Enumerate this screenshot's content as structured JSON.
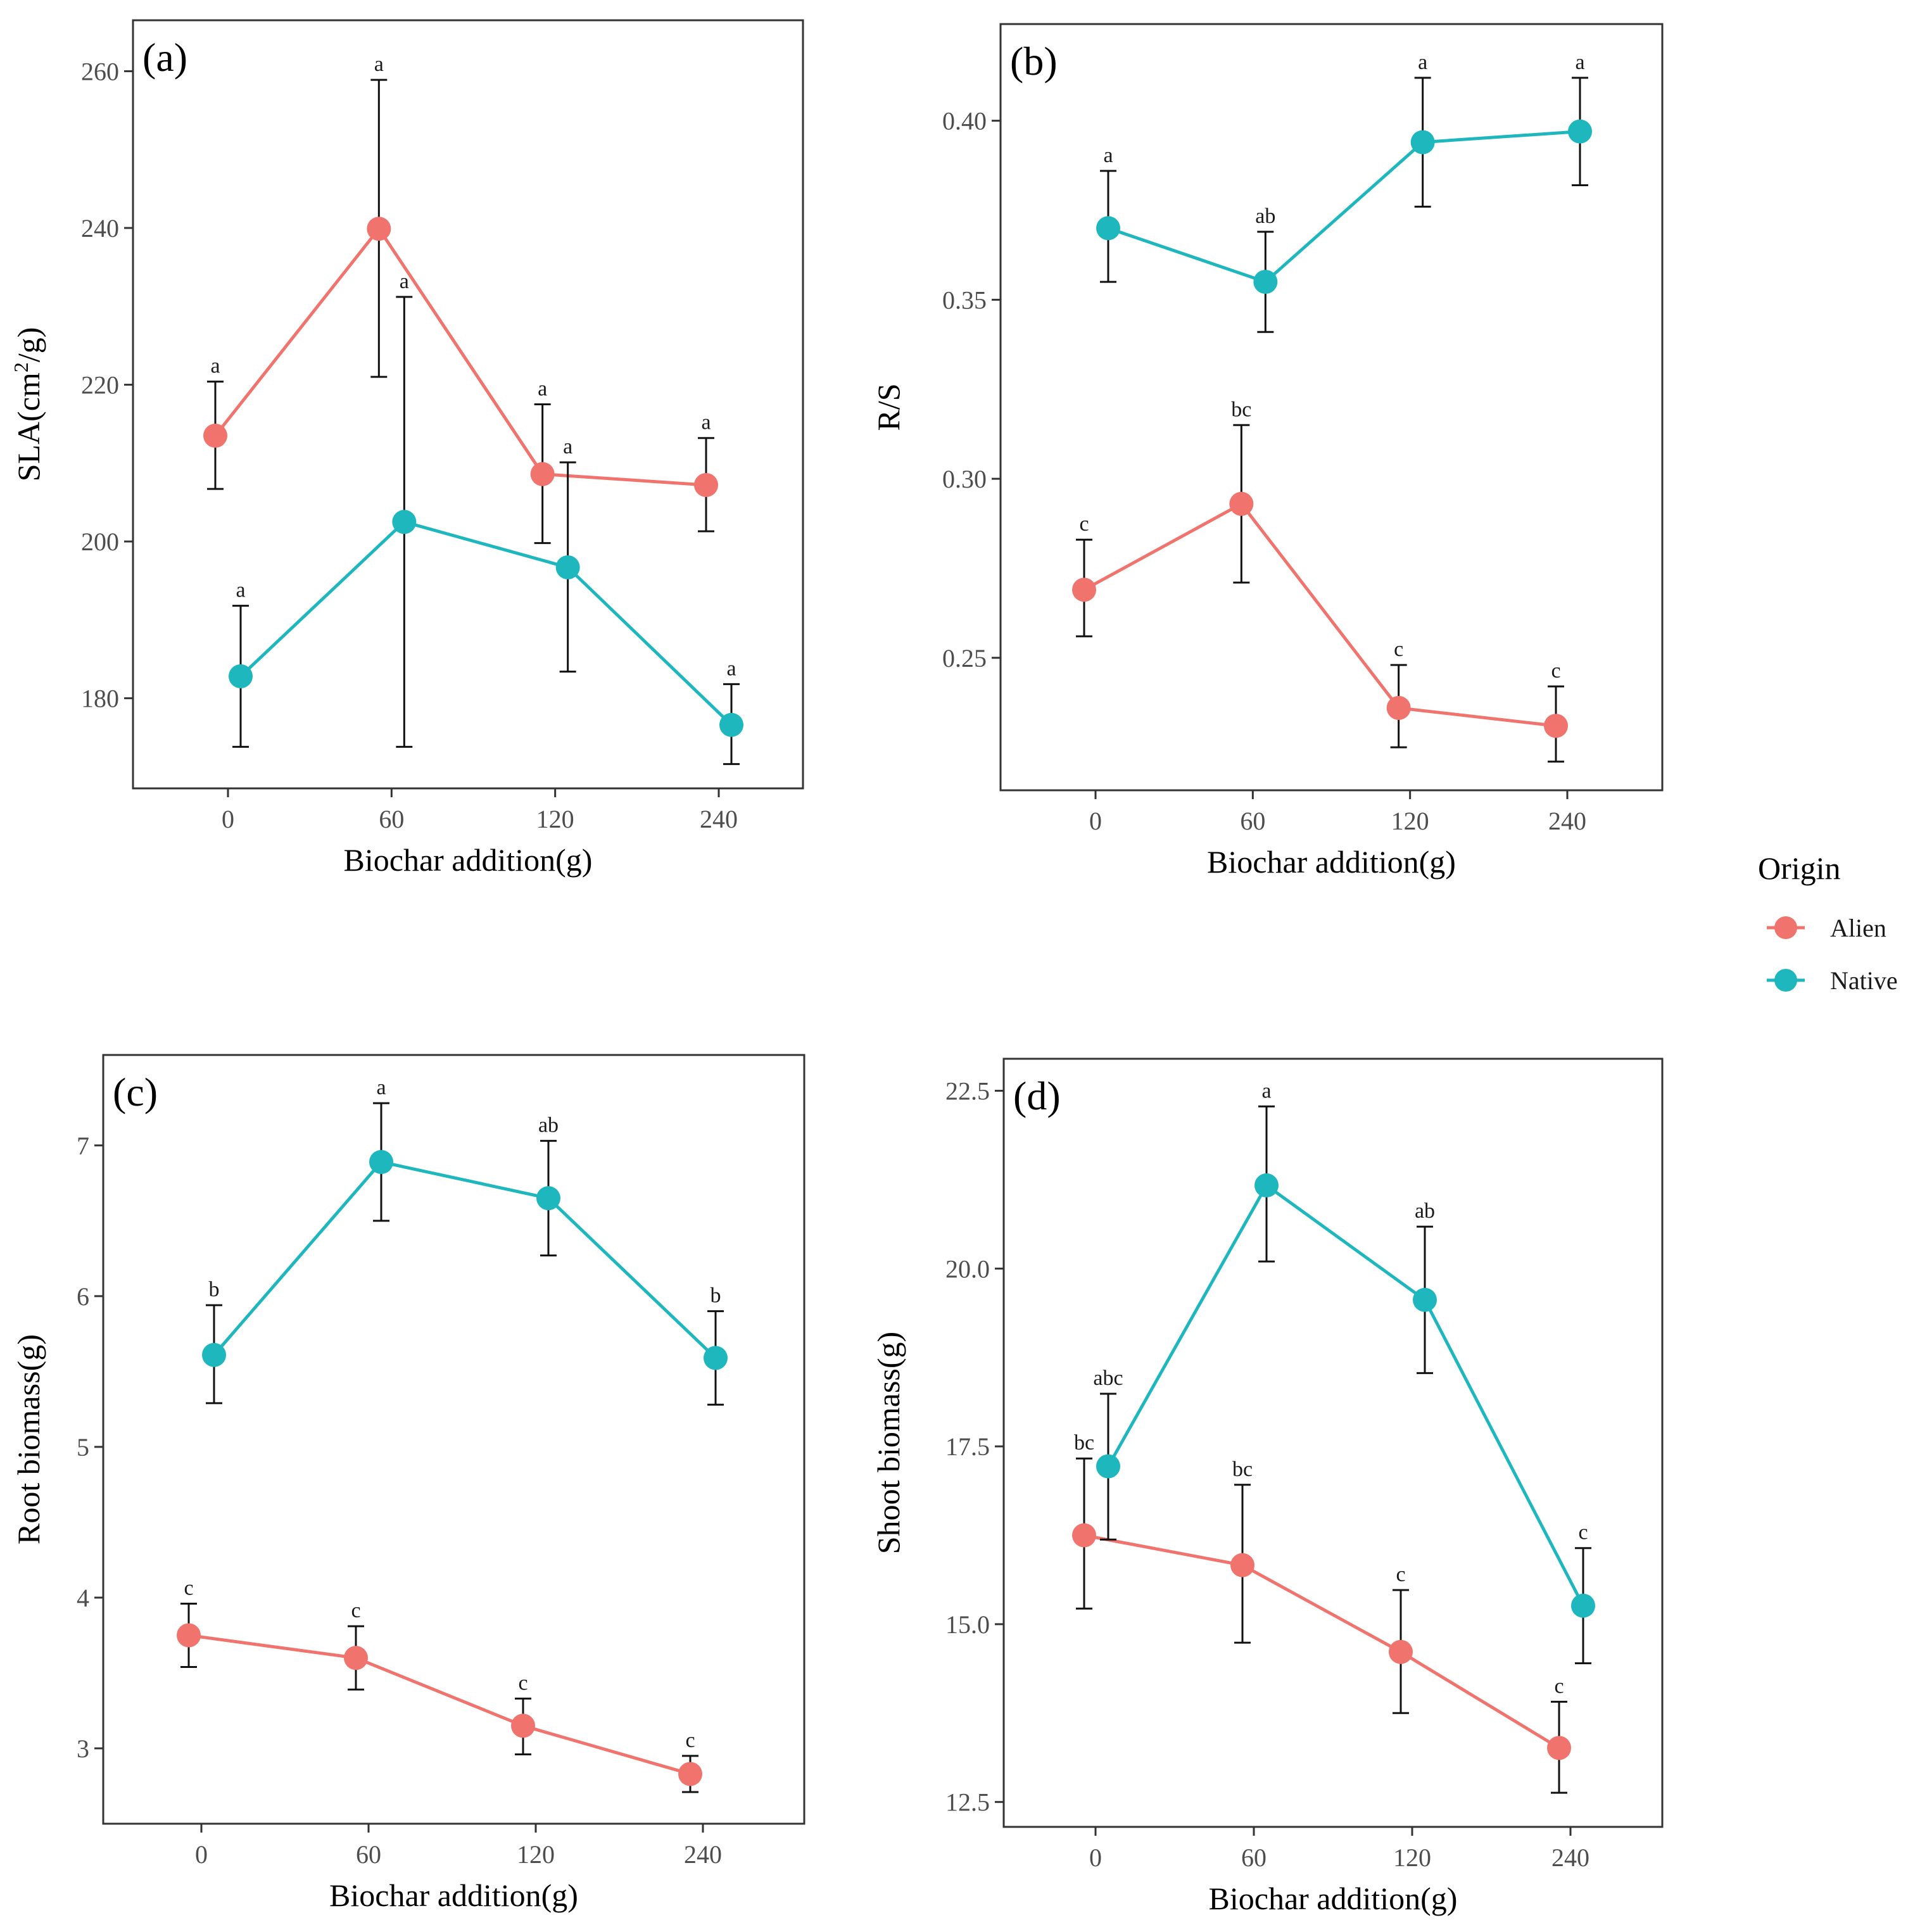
{
  "chart_data": [
    {
      "panel": "(a)",
      "type": "line",
      "xlabel": "Biochar addition(g)",
      "ylabel_main": "SLA(cm",
      "ylabel_sup": "2",
      "ylabel_tail": "/g)",
      "categories": [
        "0",
        "60",
        "120",
        "240"
      ],
      "yticks": [
        180,
        200,
        220,
        240,
        260
      ],
      "ylim": [
        168.5,
        266.5
      ],
      "series": [
        {
          "name": "Alien",
          "values": [
            213.5,
            239.9,
            208.6,
            207.2
          ],
          "err_low": [
            206.7,
            221.0,
            199.8,
            201.3
          ],
          "err_high": [
            220.4,
            258.9,
            217.5,
            213.2
          ],
          "labels": [
            "a",
            "a",
            "a",
            "a"
          ]
        },
        {
          "name": "Native",
          "values": [
            182.8,
            202.5,
            196.7,
            176.6
          ],
          "err_low": [
            173.8,
            173.8,
            183.4,
            171.6
          ],
          "err_high": [
            191.8,
            231.2,
            210.1,
            181.8
          ],
          "labels": [
            "a",
            "a",
            "a",
            "a"
          ]
        }
      ]
    },
    {
      "panel": "(b)",
      "type": "line",
      "xlabel": "Biochar addition(g)",
      "ylabel_main": "R/S",
      "ylabel_sup": "",
      "ylabel_tail": "",
      "categories": [
        "0",
        "60",
        "120",
        "240"
      ],
      "yticks": [
        "0.25",
        "0.30",
        "0.35",
        "0.40"
      ],
      "ylim": [
        0.213,
        0.427
      ],
      "series": [
        {
          "name": "Alien",
          "values": [
            0.269,
            0.293,
            0.236,
            0.231
          ],
          "err_low": [
            0.256,
            0.271,
            0.225,
            0.221
          ],
          "err_high": [
            0.283,
            0.315,
            0.248,
            0.242
          ],
          "labels": [
            "c",
            "bc",
            "c",
            "c"
          ]
        },
        {
          "name": "Native",
          "values": [
            0.37,
            0.355,
            0.394,
            0.397
          ],
          "err_low": [
            0.355,
            0.341,
            0.376,
            0.382
          ],
          "err_high": [
            0.386,
            0.369,
            0.412,
            0.412
          ],
          "labels": [
            "a",
            "ab",
            "a",
            "a"
          ]
        }
      ]
    },
    {
      "panel": "(c)",
      "type": "line",
      "xlabel": "Biochar addition(g)",
      "ylabel_main": "Root biomass(g)",
      "ylabel_sup": "",
      "ylabel_tail": "",
      "categories": [
        "0",
        "60",
        "120",
        "240"
      ],
      "yticks": [
        3,
        4,
        5,
        6,
        7
      ],
      "ylim": [
        2.5,
        7.6
      ],
      "series": [
        {
          "name": "Alien",
          "values": [
            3.75,
            3.6,
            3.15,
            2.83
          ],
          "err_low": [
            3.54,
            3.39,
            2.96,
            2.71
          ],
          "err_high": [
            3.96,
            3.81,
            3.33,
            2.95
          ],
          "labels": [
            "c",
            "c",
            "c",
            "c"
          ]
        },
        {
          "name": "Native",
          "values": [
            5.61,
            6.89,
            6.65,
            5.59
          ],
          "err_low": [
            5.29,
            6.5,
            6.27,
            5.28
          ],
          "err_high": [
            5.94,
            7.28,
            7.03,
            5.9
          ],
          "labels": [
            "b",
            "a",
            "ab",
            "b"
          ]
        }
      ]
    },
    {
      "panel": "(d)",
      "type": "line",
      "xlabel": "Biochar addition(g)",
      "ylabel_main": "Shoot biomass(g)",
      "ylabel_sup": "",
      "ylabel_tail": "",
      "categories": [
        "0",
        "60",
        "120",
        "240"
      ],
      "yticks": [
        "12.5",
        "15.0",
        "17.5",
        "20.0",
        "22.5"
      ],
      "ylim": [
        12.15,
        22.95
      ],
      "series": [
        {
          "name": "Alien",
          "values": [
            16.25,
            15.83,
            14.61,
            13.26
          ],
          "err_low": [
            15.22,
            14.74,
            13.75,
            12.63
          ],
          "err_high": [
            17.33,
            16.96,
            15.48,
            13.91
          ],
          "labels": [
            "bc",
            "bc",
            "c",
            "c"
          ]
        },
        {
          "name": "Native",
          "values": [
            17.22,
            21.17,
            19.56,
            15.26
          ],
          "err_low": [
            16.19,
            20.1,
            18.53,
            14.45
          ],
          "err_high": [
            18.24,
            22.28,
            20.59,
            16.07
          ],
          "labels": [
            "abc",
            "a",
            "ab",
            "c"
          ]
        }
      ]
    }
  ],
  "legend": {
    "title": "Origin",
    "items": [
      {
        "name": "Alien",
        "color": "#F0746D"
      },
      {
        "name": "Native",
        "color": "#1FB7BE"
      }
    ]
  }
}
